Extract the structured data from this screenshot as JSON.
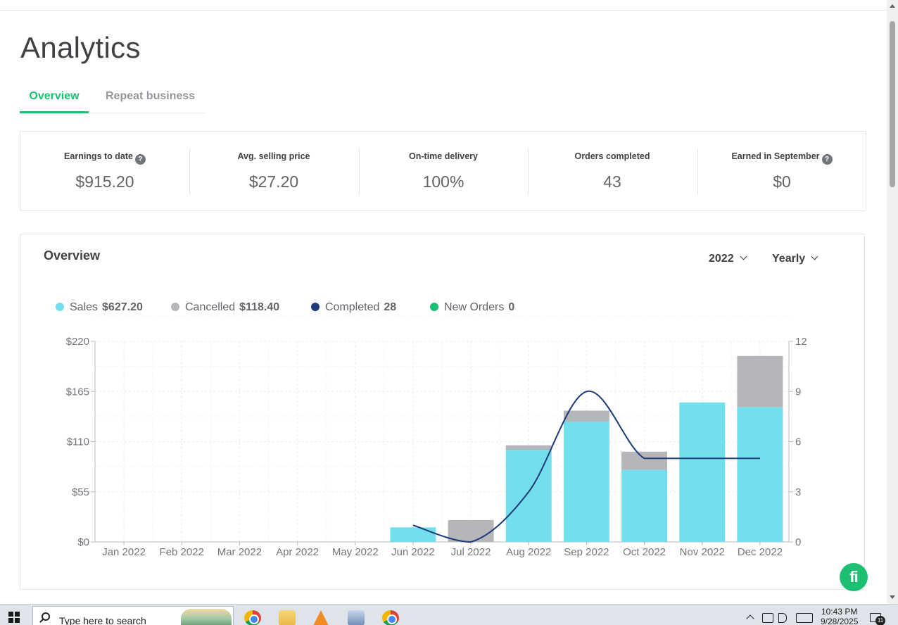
{
  "page": {
    "title": "Analytics"
  },
  "tabs": [
    {
      "label": "Overview",
      "active": true
    },
    {
      "label": "Repeat business",
      "active": false
    }
  ],
  "stats": [
    {
      "label": "Earnings to date",
      "value": "$915.20",
      "help": true
    },
    {
      "label": "Avg. selling price",
      "value": "$27.20",
      "help": false
    },
    {
      "label": "On-time delivery",
      "value": "100%",
      "help": false
    },
    {
      "label": "Orders completed",
      "value": "43",
      "help": false
    },
    {
      "label": "Earned in September",
      "value": "$0",
      "help": true
    }
  ],
  "overview": {
    "title": "Overview",
    "year_select": "2022",
    "period_select": "Yearly"
  },
  "legend": [
    {
      "label": "Sales",
      "value": "$627.20",
      "color": "#74dfec"
    },
    {
      "label": "Cancelled",
      "value": "$118.40",
      "color": "#b5b6ba"
    },
    {
      "label": "Completed",
      "value": "28",
      "color": "#1d3a7a"
    },
    {
      "label": "New Orders",
      "value": "0",
      "color": "#1dbf73"
    }
  ],
  "chart_data": {
    "type": "bar",
    "categories": [
      "Jan 2022",
      "Feb 2022",
      "Mar 2022",
      "Apr 2022",
      "May 2022",
      "Jun 2022",
      "Jul 2022",
      "Aug 2022",
      "Sep 2022",
      "Oct 2022",
      "Nov 2022",
      "Dec 2022"
    ],
    "series": [
      {
        "name": "Sales",
        "type": "bar",
        "stack": "amount",
        "axis": "left",
        "color": "#74dfec",
        "values": [
          0,
          0,
          0,
          0,
          0,
          16,
          0,
          101,
          132,
          79,
          153,
          148
        ]
      },
      {
        "name": "Cancelled",
        "type": "bar",
        "stack": "amount",
        "axis": "left",
        "color": "#b5b6ba",
        "values": [
          0,
          0,
          0,
          0,
          0,
          0,
          24,
          5,
          12,
          20,
          0,
          56
        ]
      },
      {
        "name": "Completed",
        "type": "line",
        "axis": "right",
        "color": "#1d3a7a",
        "values": [
          null,
          null,
          null,
          null,
          null,
          1,
          0,
          3,
          9,
          5,
          5,
          5
        ]
      }
    ],
    "y_left": {
      "ticks": [
        "$0",
        "$55",
        "$110",
        "$165",
        "$220"
      ],
      "range": [
        0,
        220
      ]
    },
    "y_right": {
      "ticks": [
        "0",
        "3",
        "6",
        "9",
        "12"
      ],
      "range": [
        0,
        12
      ]
    },
    "grid": true
  },
  "badge": {
    "text": "fi"
  },
  "taskbar": {
    "search_placeholder": "Type here to search",
    "time": "10:43 PM",
    "date": "9/28/2025",
    "notifications": "11"
  }
}
